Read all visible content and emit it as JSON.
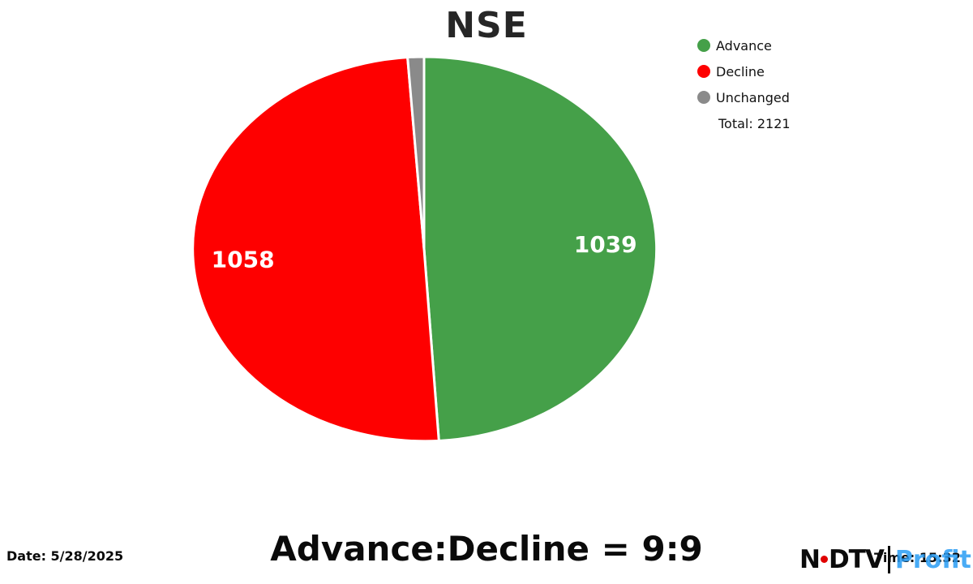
{
  "title": "NSE",
  "chart_data": {
    "type": "pie",
    "title": "NSE",
    "labels": [
      "Advance",
      "Decline",
      "Unchanged"
    ],
    "values": [
      1039,
      1058,
      24
    ],
    "slice_labels": [
      "1039",
      "1058",
      ""
    ],
    "colors": [
      "#45a049",
      "#fe0000",
      "#8a8a8a"
    ],
    "total": 2121,
    "total_label": "Total: 2121",
    "legend_position": "top-right",
    "start_angle": "top, clockwise"
  },
  "annotation": "Advance:Decline = 9:9",
  "footer": {
    "date": "Date: 5/28/2025",
    "time": "Time: 15:32"
  },
  "brand": {
    "n": "N",
    "dtv": "DTV",
    "profit": "Profit"
  }
}
